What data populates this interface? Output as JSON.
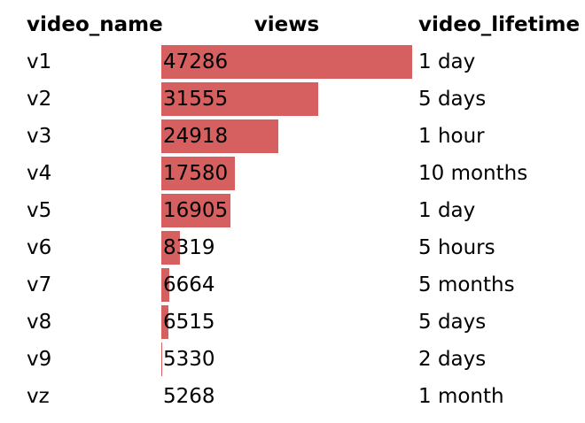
{
  "chart_data": {
    "type": "table",
    "columns": [
      "video_name",
      "views",
      "video_lifetime"
    ],
    "rows": [
      {
        "video_name": "v1",
        "views": 47286,
        "video_lifetime": "1 day"
      },
      {
        "video_name": "v2",
        "views": 31555,
        "video_lifetime": "5 days"
      },
      {
        "video_name": "v3",
        "views": 24918,
        "video_lifetime": "1 hour"
      },
      {
        "video_name": "v4",
        "views": 17580,
        "video_lifetime": "10 months"
      },
      {
        "video_name": "v5",
        "views": 16905,
        "video_lifetime": "1 day"
      },
      {
        "video_name": "v6",
        "views": 8319,
        "video_lifetime": "5 hours"
      },
      {
        "video_name": "v7",
        "views": 6664,
        "video_lifetime": "5 months"
      },
      {
        "video_name": "v8",
        "views": 6515,
        "video_lifetime": "5 days"
      },
      {
        "video_name": "v9",
        "views": 5330,
        "video_lifetime": "2 days"
      },
      {
        "video_name": "vz",
        "views": 5268,
        "video_lifetime": "1 month"
      }
    ],
    "bar_column": "views",
    "bar_range": [
      5268,
      47286
    ],
    "bar_color": "#d65f5f"
  }
}
